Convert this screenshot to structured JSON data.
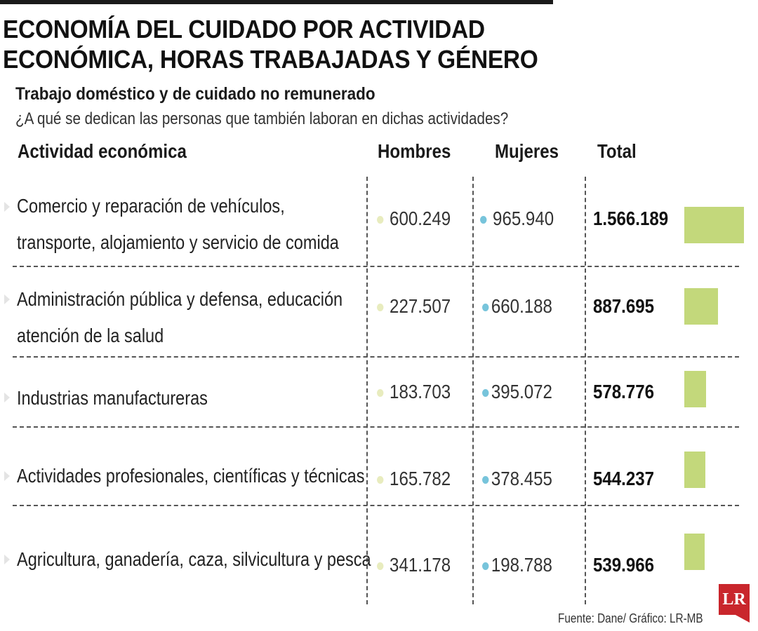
{
  "header": {
    "title_line1": "ECONOMÍA DEL CUIDADO POR ACTIVIDAD",
    "title_line2": "ECONÓMICA, HORAS TRABAJADAS Y GÉNERO",
    "subtitle": "Trabajo doméstico y de cuidado no remunerado",
    "question": "¿A qué se dedican las personas que también laboran en dichas actividades?"
  },
  "columns": {
    "activity": "Actividad económica",
    "men": "Hombres",
    "women": "Mujeres",
    "total": "Total"
  },
  "chart_data": {
    "type": "table",
    "title": "ECONOMÍA DEL CUIDADO POR ACTIVIDAD ECONÓMICA, HORAS TRABAJADAS Y GÉNERO",
    "subtitle": "Trabajo doméstico y de cuidado no remunerado",
    "columns": [
      "Actividad económica",
      "Hombres",
      "Mujeres",
      "Total"
    ],
    "rows": [
      {
        "activity_line1": "Comercio y reparación de vehículos,",
        "activity_line2": "transporte, alojamiento y servicio de comida",
        "men": "600.249",
        "women": "965.940",
        "total": "1.566.189",
        "total_value": 1566189
      },
      {
        "activity_line1": "Administración pública y defensa, educación",
        "activity_line2": "atención de la salud",
        "men": "227.507",
        "women": "660.188",
        "total": "887.695",
        "total_value": 887695
      },
      {
        "activity_line1": "Industrias manufactureras",
        "activity_line2": "",
        "men": "183.703",
        "women": "395.072",
        "total": "578.776",
        "total_value": 578776
      },
      {
        "activity_line1": "Actividades profesionales, científicas y técnicas",
        "activity_line2": "",
        "men": "165.782",
        "women": "378.455",
        "total": "544.237",
        "total_value": 544237
      },
      {
        "activity_line1": "Agricultura, ganadería, caza, silvicultura y pesca",
        "activity_line2": "",
        "men": "341.178",
        "women": "198.788",
        "total": "539.966",
        "total_value": 539966
      }
    ],
    "bar_color": "#c3d87b",
    "men_dot_color": "#e8ecbe",
    "women_dot_color": "#77c4db"
  },
  "footer": {
    "source": "Fuente: Dane/ Gráfico: LR-MB",
    "logo_text": "LR",
    "logo_color": "#c9262c"
  }
}
